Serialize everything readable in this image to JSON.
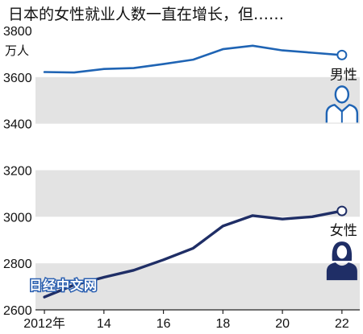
{
  "chart_data": {
    "type": "line",
    "title": "日本的女性就业人数一直在增长，但……",
    "unit": "万人",
    "x": [
      2012,
      2013,
      2014,
      2015,
      2016,
      2017,
      2018,
      2019,
      2020,
      2021,
      2022
    ],
    "xticks": [
      2012,
      2014,
      2016,
      2018,
      2020,
      2022
    ],
    "xtick_labels": [
      "2012年",
      "14",
      "16",
      "18",
      "20",
      "22"
    ],
    "yticks": [
      2600,
      2800,
      3000,
      3200,
      3400,
      3600,
      3800
    ],
    "ytick_labels": [
      "2600",
      "2800",
      "3000",
      "3200",
      "3400",
      "3600",
      "3800"
    ],
    "ylim": [
      2600,
      3800
    ],
    "xlim": [
      2011.7,
      2022.6
    ],
    "grid_bands": true,
    "series": [
      {
        "name": "男性",
        "color": "#1f64b4",
        "icon": "male-person-icon",
        "values": [
          3622,
          3620,
          3635,
          3639,
          3656,
          3675,
          3720,
          3735,
          3715,
          3705,
          3695
        ]
      },
      {
        "name": "女性",
        "color": "#1f2e66",
        "icon": "female-person-icon",
        "values": [
          2655,
          2707,
          2740,
          2770,
          2815,
          2865,
          2960,
          3005,
          2990,
          3000,
          3025
        ]
      }
    ]
  },
  "watermark": "日经中文网"
}
